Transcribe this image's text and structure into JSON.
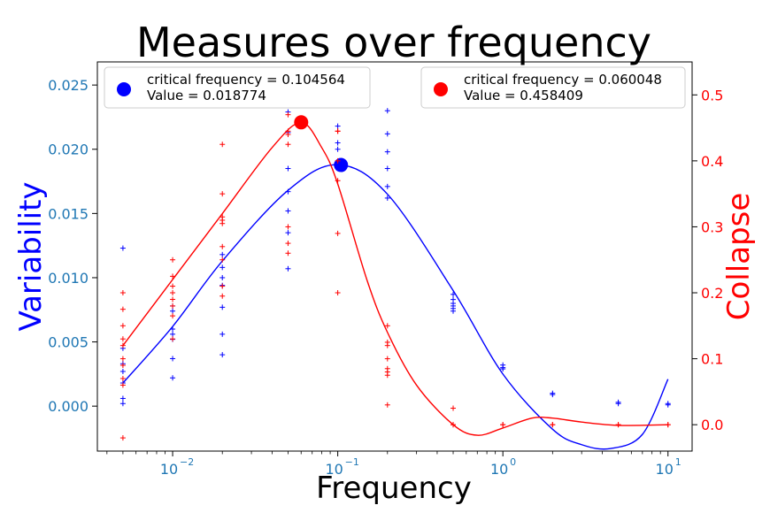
{
  "chart_data": {
    "type": "scatter",
    "title": "Measures over frequency",
    "xlabel": "Frequency",
    "ylabel_left": "Variability",
    "ylabel_right": "Collapse",
    "x_scale": "log",
    "xlim": [
      0.0035,
      14
    ],
    "x_ticks": [
      {
        "value": 0.01,
        "base": "10",
        "exp": "−2"
      },
      {
        "value": 0.1,
        "base": "10",
        "exp": "−1"
      },
      {
        "value": 1,
        "base": "10",
        "exp": "0"
      },
      {
        "value": 10,
        "base": "10",
        "exp": "1"
      }
    ],
    "ylim_left": [
      -0.0035,
      0.0268
    ],
    "left_ticks": [
      "0.000",
      "0.005",
      "0.010",
      "0.015",
      "0.020",
      "0.025"
    ],
    "left_tick_values": [
      0,
      0.005,
      0.01,
      0.015,
      0.02,
      0.025
    ],
    "ylim_right": [
      -0.04,
      0.55
    ],
    "right_ticks": [
      "0.0",
      "0.1",
      "0.2",
      "0.3",
      "0.4",
      "0.5"
    ],
    "right_tick_values": [
      0,
      0.1,
      0.2,
      0.3,
      0.4,
      0.5
    ],
    "grid": false,
    "colors": {
      "variability": "#0000ff",
      "collapse": "#ff0000",
      "left_ticks": "#1f77b4",
      "right_ticks": "#ff0000"
    },
    "series": [
      {
        "axis": "left",
        "color": "#0000ff",
        "points": [
          {
            "x": 0.005,
            "y": [
              0.0123,
              0.0045,
              0.0033,
              0.0027,
              0.0018,
              0.0006,
              0.0002
            ]
          },
          {
            "x": 0.01,
            "y": [
              0.0078,
              0.0074,
              0.006,
              0.0056,
              0.0052,
              0.0037,
              0.0022
            ]
          },
          {
            "x": 0.02,
            "y": [
              0.0118,
              0.0108,
              0.01,
              0.0094,
              0.0077,
              0.0056,
              0.004
            ]
          },
          {
            "x": 0.05,
            "y": [
              0.0229,
              0.0213,
              0.0185,
              0.0167,
              0.0152,
              0.0135,
              0.0107
            ]
          },
          {
            "x": 0.1,
            "y": [
              0.0245,
              0.0235,
              0.0218,
              0.0205,
              0.02,
              0.0187
            ]
          },
          {
            "x": 0.2,
            "y": [
              0.023,
              0.0212,
              0.0198,
              0.0185,
              0.0171,
              0.0162
            ]
          },
          {
            "x": 0.5,
            "y": [
              0.0087,
              0.0083,
              0.008,
              0.0078,
              0.0076,
              0.0074
            ]
          },
          {
            "x": 1,
            "y": [
              0.0032,
              0.003,
              0.0029
            ]
          },
          {
            "x": 2,
            "y": [
              0.001,
              0.0009
            ]
          },
          {
            "x": 5,
            "y": [
              0.0003,
              0.0002
            ]
          },
          {
            "x": 10,
            "y": [
              0.0002,
              0.0001
            ]
          }
        ],
        "fit": [
          {
            "x": 0.005,
            "y": 0.0018
          },
          {
            "x": 0.01,
            "y": 0.0062
          },
          {
            "x": 0.02,
            "y": 0.0113
          },
          {
            "x": 0.05,
            "y": 0.0168
          },
          {
            "x": 0.1,
            "y": 0.0188
          },
          {
            "x": 0.2,
            "y": 0.0165
          },
          {
            "x": 0.5,
            "y": 0.009
          },
          {
            "x": 1,
            "y": 0.0025
          },
          {
            "x": 2,
            "y": -0.0018
          },
          {
            "x": 3,
            "y": -0.003
          },
          {
            "x": 4.5,
            "y": -0.0033
          },
          {
            "x": 7,
            "y": -0.0022
          },
          {
            "x": 10,
            "y": 0.0021
          }
        ],
        "critical": {
          "x": 0.104564,
          "y": 0.018774
        }
      },
      {
        "axis": "right",
        "color": "#ff0000",
        "points": [
          {
            "x": 0.005,
            "y": [
              0.2,
              0.175,
              0.15,
              0.13,
              0.12,
              0.1,
              0.09,
              0.07,
              0.06,
              -0.02
            ]
          },
          {
            "x": 0.01,
            "y": [
              0.25,
              0.225,
              0.21,
              0.2,
              0.19,
              0.18,
              0.165,
              0.13
            ]
          },
          {
            "x": 0.02,
            "y": [
              0.425,
              0.35,
              0.315,
              0.31,
              0.305,
              0.27,
              0.25,
              0.21,
              0.195
            ]
          },
          {
            "x": 0.05,
            "y": [
              0.525,
              0.505,
              0.47,
              0.445,
              0.44,
              0.425,
              0.3,
              0.275,
              0.26
            ]
          },
          {
            "x": 0.1,
            "y": [
              0.445,
              0.445,
              0.4,
              0.37,
              0.29,
              0.2
            ]
          },
          {
            "x": 0.2,
            "y": [
              0.15,
              0.125,
              0.12,
              0.1,
              0.085,
              0.08,
              0.075,
              0.03
            ]
          },
          {
            "x": 0.5,
            "y": [
              0.025,
              0.0,
              0.0
            ]
          },
          {
            "x": 1,
            "y": [
              0.0,
              0.0
            ]
          },
          {
            "x": 2,
            "y": [
              0.0,
              0.0
            ]
          },
          {
            "x": 5,
            "y": [
              0.0,
              0.0
            ]
          },
          {
            "x": 10,
            "y": [
              0.0,
              0.0
            ]
          }
        ],
        "fit": [
          {
            "x": 0.005,
            "y": 0.12
          },
          {
            "x": 0.01,
            "y": 0.22
          },
          {
            "x": 0.02,
            "y": 0.32
          },
          {
            "x": 0.04,
            "y": 0.42
          },
          {
            "x": 0.06,
            "y": 0.458
          },
          {
            "x": 0.08,
            "y": 0.42
          },
          {
            "x": 0.1,
            "y": 0.365
          },
          {
            "x": 0.15,
            "y": 0.22
          },
          {
            "x": 0.2,
            "y": 0.14
          },
          {
            "x": 0.3,
            "y": 0.06
          },
          {
            "x": 0.5,
            "y": 0.0
          },
          {
            "x": 0.7,
            "y": -0.016
          },
          {
            "x": 1,
            "y": -0.005
          },
          {
            "x": 1.5,
            "y": 0.01
          },
          {
            "x": 2,
            "y": 0.01
          },
          {
            "x": 3,
            "y": 0.004
          },
          {
            "x": 5,
            "y": -0.001
          },
          {
            "x": 10,
            "y": 0.0
          }
        ],
        "critical": {
          "x": 0.060048,
          "y": 0.458409
        }
      }
    ],
    "legends": [
      {
        "placement": "top-left",
        "color": "#0000ff",
        "line1": "critical frequency = 0.104564",
        "line2": "Value = 0.018774"
      },
      {
        "placement": "top-right",
        "color": "#ff0000",
        "line1": "critical frequency = 0.060048",
        "line2": "Value = 0.458409"
      }
    ]
  }
}
